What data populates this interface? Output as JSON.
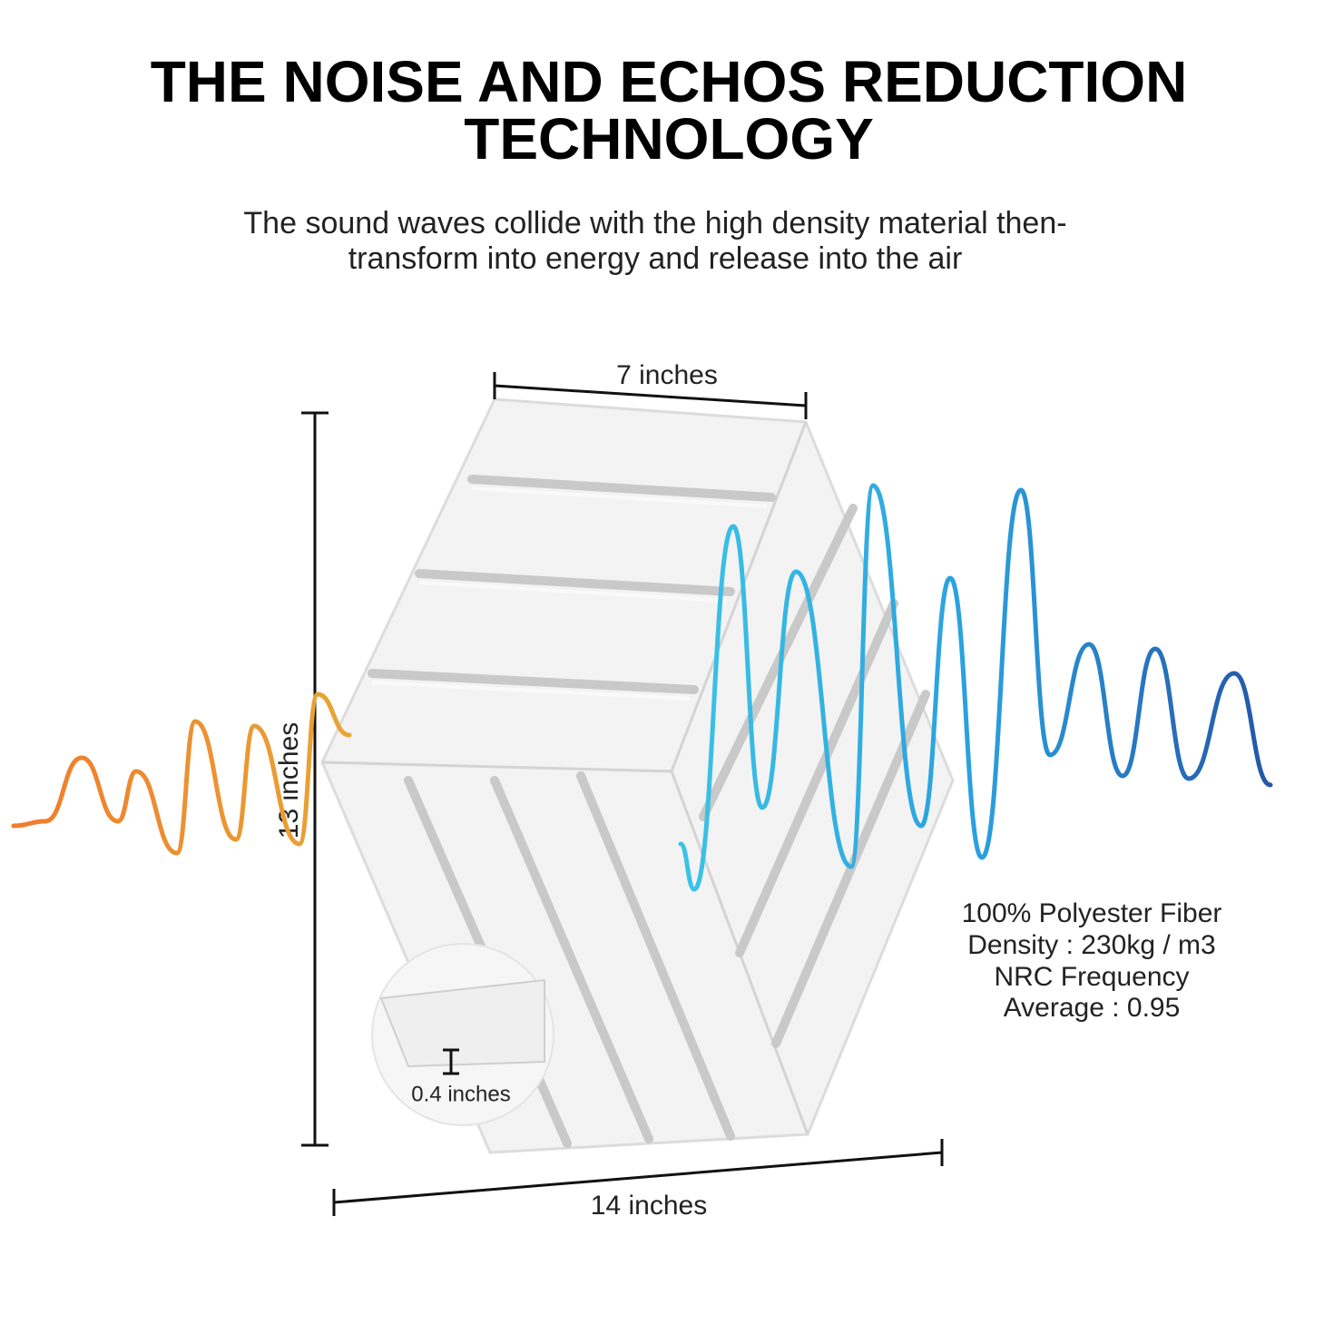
{
  "title": {
    "lines": [
      "THE NOISE AND ECHOS REDUCTION",
      "TECHNOLOGY"
    ]
  },
  "subtitle": {
    "lines": [
      "The sound waves collide with the high density material then-",
      "transform into energy and release into the air"
    ]
  },
  "dimensions": {
    "width_top": "7 inches",
    "height": "13 inches",
    "width_full": "14 inches",
    "thickness": "0.4 inches"
  },
  "specs": {
    "lines": [
      "100% Polyester Fiber",
      "Density : 230kg / m3",
      "NRC Frequency",
      "Average : 0.95"
    ]
  }
}
